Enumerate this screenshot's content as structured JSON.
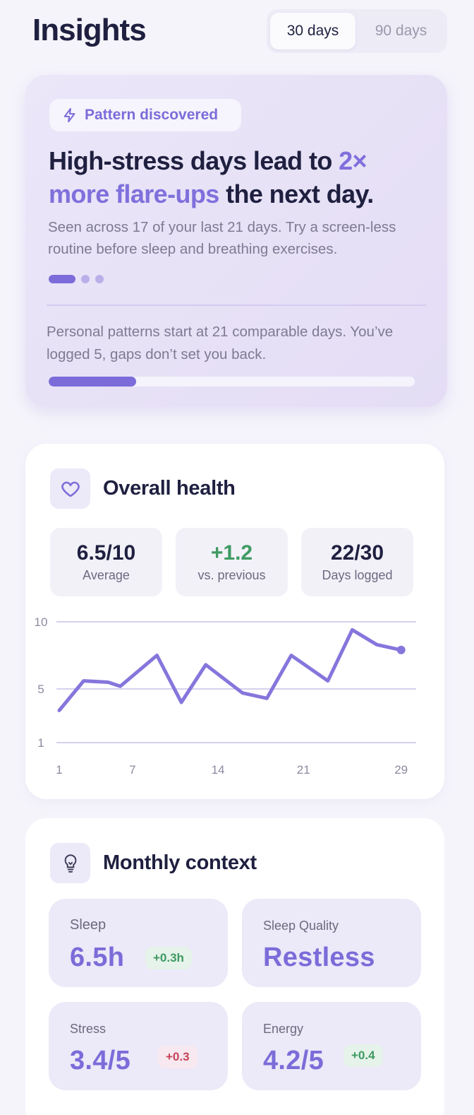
{
  "header": {
    "title": "Insights",
    "ranges": [
      "30 days",
      "90 days"
    ],
    "active_range": "30 days"
  },
  "pattern": {
    "badge": "Pattern discovered",
    "headline_part1": "High-stress days lead to ",
    "headline_highlight": "2× more flare-ups",
    "headline_part2": " the next day.",
    "description": "Seen across 17 of your last 21 days. Try a screen-less routine before sleep and breathing exercises.",
    "slide_count": 3,
    "active_slide": 1,
    "progress_note": "Personal patterns start at 21 comparable days. You’ve logged 5, gaps don’t set you back.",
    "progress_logged": 5,
    "progress_target": 21
  },
  "health": {
    "title": "Overall health",
    "stats": [
      {
        "value": "6.5/10",
        "label": "Average"
      },
      {
        "value": "+1.2",
        "label": "vs. previous"
      },
      {
        "value": "22/30",
        "label": "Days logged"
      }
    ]
  },
  "chart_data": {
    "type": "line",
    "x": [
      1,
      3,
      5,
      6,
      9,
      11,
      13,
      16,
      18,
      20,
      23,
      25,
      27,
      29
    ],
    "series": [
      {
        "values": [
          3.4,
          5.6,
          5.5,
          5.2,
          7.5,
          4.0,
          6.8,
          4.7,
          4.3,
          7.5,
          5.6,
          9.4,
          8.3,
          7.9
        ]
      }
    ],
    "xticks": [
      "1",
      "7",
      "14",
      "21",
      "29"
    ],
    "yticks": [
      "10",
      "5",
      "1"
    ],
    "ylim": [
      1,
      10
    ],
    "xlim": [
      1,
      30
    ],
    "grid": true,
    "color": "#8576dc"
  },
  "context": {
    "title": "Monthly context",
    "metrics": [
      {
        "label": "Sleep",
        "value": "6.5h",
        "delta": "+0.3h",
        "trend": "good"
      },
      {
        "label": "Sleep Quality",
        "value": "Restless",
        "delta": "",
        "trend": ""
      },
      {
        "label": "Stress",
        "value": "3.4/5",
        "delta": "+0.3",
        "trend": "bad"
      },
      {
        "label": "Energy",
        "value": "4.2/5",
        "delta": "+0.4",
        "trend": "good"
      }
    ]
  },
  "colors": {
    "accent": "#7b6cd9",
    "positive": "#3f9a62",
    "negative": "#c6445b"
  }
}
